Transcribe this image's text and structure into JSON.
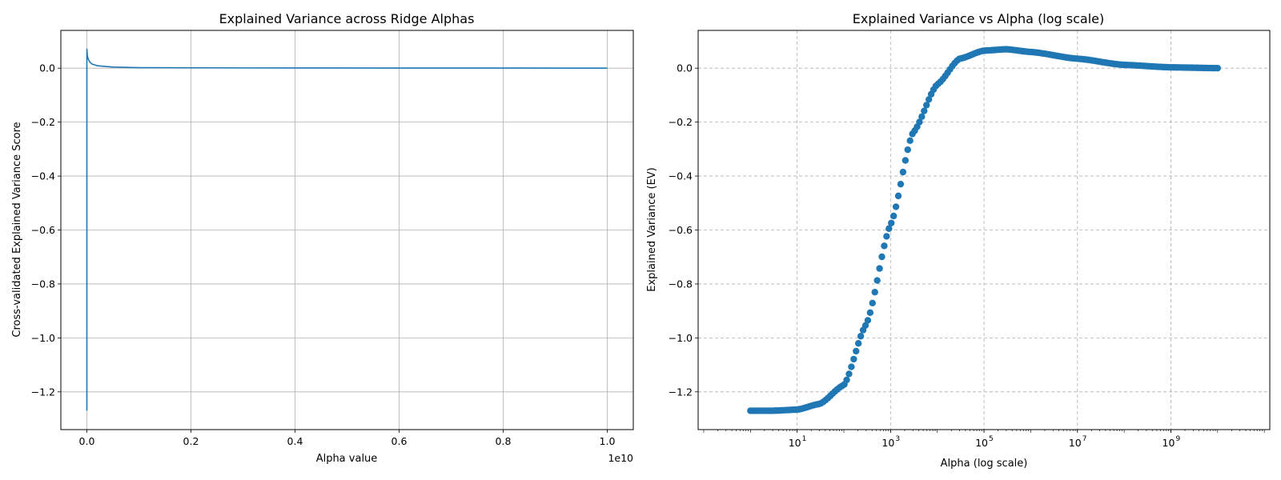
{
  "chart_data": [
    {
      "type": "line",
      "title": "Explained Variance across Ridge Alphas",
      "xlabel": "Alpha value",
      "ylabel": "Cross-validated Explained Variance Score",
      "x_offset_label": "1e10",
      "xlim": [
        -0.05,
        1.05
      ],
      "ylim": [
        -1.34,
        0.14
      ],
      "x_scale_factor": 10000000000,
      "xticks": [
        0.0,
        0.2,
        0.4,
        0.6,
        0.8,
        1.0
      ],
      "xtick_labels": [
        "0.0",
        "0.2",
        "0.4",
        "0.6",
        "0.8",
        "1.0"
      ],
      "yticks": [
        0.0,
        -0.2,
        -0.4,
        -0.6,
        -0.8,
        -1.0,
        -1.2
      ],
      "ytick_labels": [
        "0.0",
        "−0.2",
        "−0.4",
        "−0.6",
        "−0.8",
        "−1.0",
        "−1.2"
      ],
      "grid": true,
      "grid_style": "solid",
      "color": "#1f77b4",
      "series": [
        {
          "x": [
            1,
            10,
            100,
            1000,
            10000,
            100000,
            1000000,
            10000000,
            30000000,
            60000000,
            100000000,
            200000000,
            500000000,
            1000000000,
            3000000000,
            10000000000
          ],
          "y": [
            -1.27,
            -1.266,
            -1.18,
            -0.58,
            -0.06,
            0.065,
            0.07,
            0.045,
            0.032,
            0.022,
            0.015,
            0.009,
            0.004,
            0.002,
            0.001,
            0.0
          ]
        }
      ]
    },
    {
      "type": "scatter",
      "title": "Explained Variance vs Alpha (log scale)",
      "xlabel": "Alpha (log scale)",
      "ylabel": "Explained Variance (EV)",
      "x_scale": "log",
      "xlim": [
        0.076,
        131000000000
      ],
      "ylim": [
        -1.34,
        0.14
      ],
      "xticks": [
        10,
        1000,
        100000,
        10000000,
        1000000000
      ],
      "xtick_labels": [
        {
          "base": "10",
          "exp": "1"
        },
        {
          "base": "10",
          "exp": "3"
        },
        {
          "base": "10",
          "exp": "5"
        },
        {
          "base": "10",
          "exp": "7"
        },
        {
          "base": "10",
          "exp": "9"
        }
      ],
      "yticks": [
        0.0,
        -0.2,
        -0.4,
        -0.6,
        -0.8,
        -1.0,
        -1.2
      ],
      "ytick_labels": [
        "0.0",
        "−0.2",
        "−0.4",
        "−0.6",
        "−0.8",
        "−1.0",
        "−1.2"
      ],
      "grid": true,
      "grid_style": "dashed",
      "color": "#1f77b4",
      "n_points": 200,
      "x_range": [
        1,
        10000000000
      ],
      "curve_anchors": [
        {
          "x": 1,
          "y": -1.27
        },
        {
          "x": 3,
          "y": -1.27
        },
        {
          "x": 10,
          "y": -1.266
        },
        {
          "x": 30,
          "y": -1.245
        },
        {
          "x": 100,
          "y": -1.175
        },
        {
          "x": 300,
          "y": -0.95
        },
        {
          "x": 1000,
          "y": -0.58
        },
        {
          "x": 3000,
          "y": -0.24
        },
        {
          "x": 10000,
          "y": -0.06
        },
        {
          "x": 30000,
          "y": 0.035
        },
        {
          "x": 100000,
          "y": 0.065
        },
        {
          "x": 300000,
          "y": 0.07
        },
        {
          "x": 1000000,
          "y": 0.06
        },
        {
          "x": 10000000,
          "y": 0.035
        },
        {
          "x": 100000000,
          "y": 0.012
        },
        {
          "x": 1000000000,
          "y": 0.003
        },
        {
          "x": 10000000000,
          "y": 0.0
        }
      ]
    }
  ]
}
